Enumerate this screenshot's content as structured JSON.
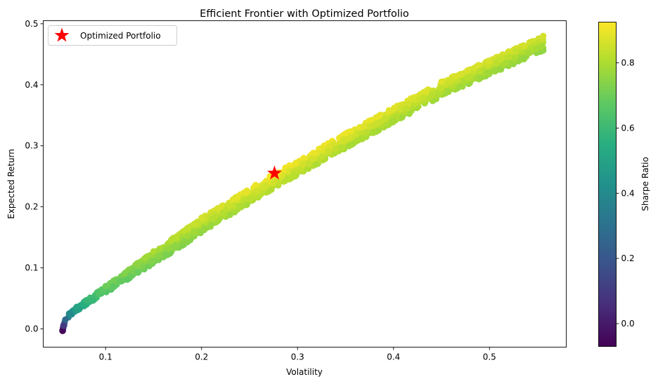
{
  "chart_data": {
    "type": "scatter",
    "title": "Efficient Frontier with Optimized Portfolio",
    "xlabel": "Volatility",
    "ylabel": "Expected Return",
    "xlim": [
      0.035,
      0.58
    ],
    "ylim": [
      -0.03,
      0.505
    ],
    "x_ticks": [
      0.1,
      0.2,
      0.3,
      0.4,
      0.5
    ],
    "x_tick_labels": [
      "0.1",
      "0.2",
      "0.3",
      "0.4",
      "0.5"
    ],
    "y_ticks": [
      0.0,
      0.1,
      0.2,
      0.3,
      0.4,
      0.5
    ],
    "y_tick_labels": [
      "0.0",
      "0.1",
      "0.2",
      "0.3",
      "0.4",
      "0.5"
    ],
    "grid": false,
    "legend_position": "top-left",
    "colormap": "viridis",
    "colorbar": {
      "label": "Sharpe Ratio",
      "range": [
        -0.07,
        0.925
      ],
      "ticks": [
        0.0,
        0.2,
        0.4,
        0.6,
        0.8
      ],
      "tick_labels": [
        "0.0",
        "0.2",
        "0.4",
        "0.6",
        "0.8"
      ]
    },
    "frontier": {
      "description_points": [
        {
          "volatility": 0.055,
          "return": -0.003,
          "sharpe": -0.05
        },
        {
          "volatility": 0.056,
          "return": 0.005,
          "sharpe": 0.1
        },
        {
          "volatility": 0.058,
          "return": 0.015,
          "sharpe": 0.26
        },
        {
          "volatility": 0.062,
          "return": 0.025,
          "sharpe": 0.4
        },
        {
          "volatility": 0.07,
          "return": 0.036,
          "sharpe": 0.51
        },
        {
          "volatility": 0.08,
          "return": 0.047,
          "sharpe": 0.59
        },
        {
          "volatility": 0.1,
          "return": 0.07,
          "sharpe": 0.7
        },
        {
          "volatility": 0.15,
          "return": 0.127,
          "sharpe": 0.8
        },
        {
          "volatility": 0.2,
          "return": 0.182,
          "sharpe": 0.86
        },
        {
          "volatility": 0.276,
          "return": 0.255,
          "sharpe": 0.92
        },
        {
          "volatility": 0.35,
          "return": 0.32,
          "sharpe": 0.9
        },
        {
          "volatility": 0.45,
          "return": 0.405,
          "sharpe": 0.88
        },
        {
          "volatility": 0.556,
          "return": 0.48,
          "sharpe": 0.86
        }
      ]
    },
    "series": [
      {
        "name": "Optimized Portfolio",
        "marker": "star",
        "color": "#ff0000",
        "x": [
          0.276
        ],
        "y": [
          0.255
        ]
      }
    ]
  }
}
